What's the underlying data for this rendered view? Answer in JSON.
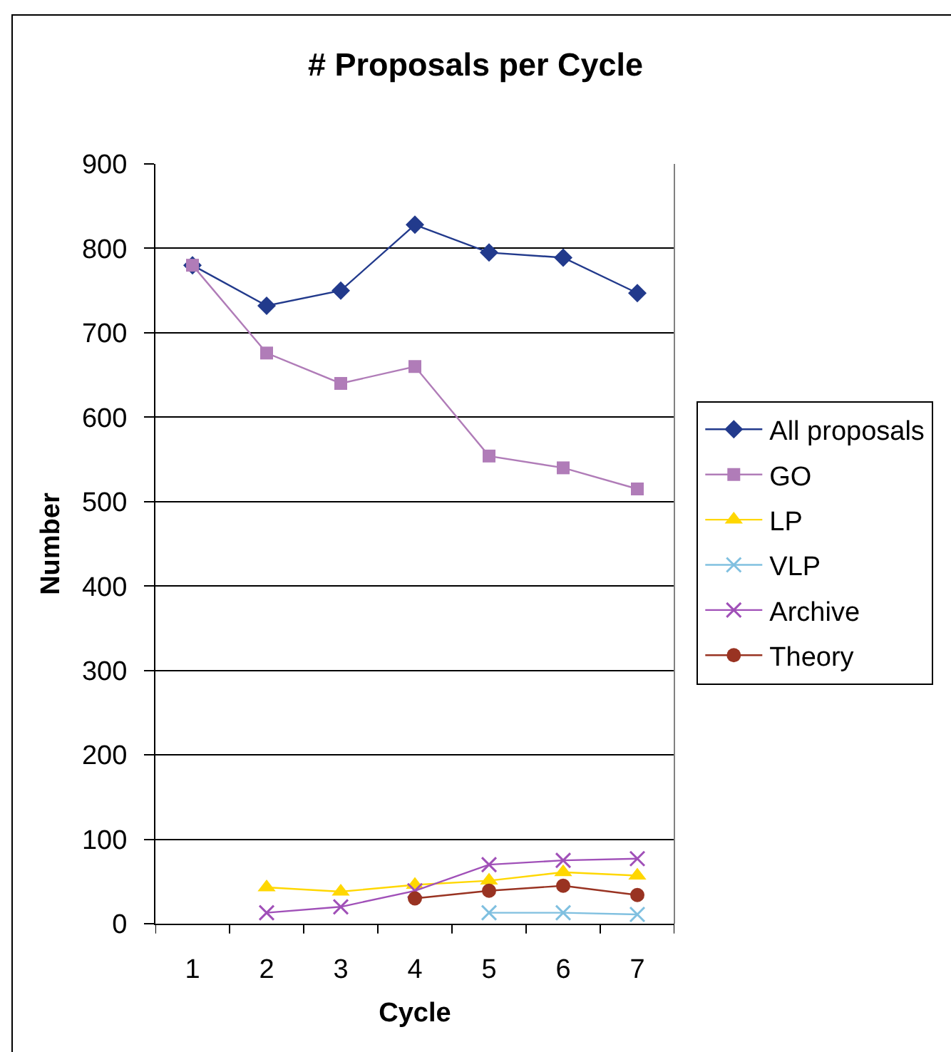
{
  "chart_data": {
    "type": "line",
    "title": "# Proposals per Cycle",
    "xlabel": "Cycle",
    "ylabel": "Number",
    "categories": [
      "1",
      "2",
      "3",
      "4",
      "5",
      "6",
      "7"
    ],
    "ylim": [
      0,
      900
    ],
    "yticks": [
      0,
      100,
      200,
      300,
      400,
      500,
      600,
      700,
      800,
      900
    ],
    "grid": "y",
    "legend": "right",
    "series": [
      {
        "name": "All proposals",
        "color": "#223a8c",
        "marker": "diamond",
        "values": [
          780,
          732,
          750,
          828,
          795,
          789,
          747
        ]
      },
      {
        "name": "GO",
        "color": "#b07cb8",
        "marker": "square",
        "values": [
          780,
          676,
          640,
          660,
          554,
          540,
          515
        ]
      },
      {
        "name": "LP",
        "color": "#ffd700",
        "marker": "triangle",
        "values": [
          null,
          43,
          38,
          46,
          51,
          61,
          57
        ]
      },
      {
        "name": "VLP",
        "color": "#80c0e0",
        "marker": "cross",
        "values": [
          null,
          null,
          null,
          null,
          13,
          13,
          11
        ]
      },
      {
        "name": "Archive",
        "color": "#a050b8",
        "marker": "cross",
        "values": [
          null,
          13,
          20,
          39,
          70,
          75,
          77
        ]
      },
      {
        "name": "Theory",
        "color": "#993322",
        "marker": "circle",
        "values": [
          null,
          null,
          null,
          30,
          39,
          45,
          34
        ]
      }
    ]
  }
}
